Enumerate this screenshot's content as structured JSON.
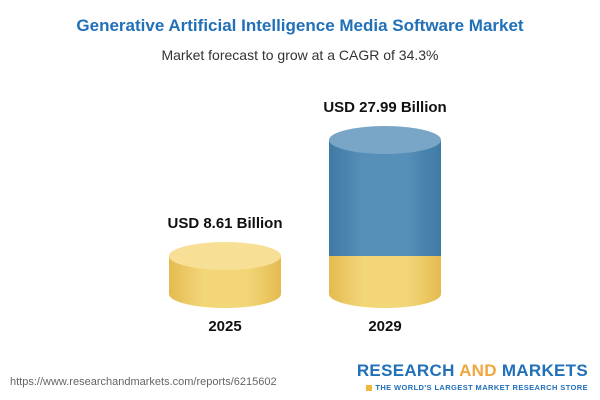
{
  "title": "Generative Artificial Intelligence Media Software Market",
  "subtitle": "Market forecast to grow at a CAGR of 34.3%",
  "chart_data": {
    "type": "bar",
    "title": "Generative Artificial Intelligence Media Software Market",
    "subtitle": "Market forecast to grow at a CAGR of 34.3%",
    "cagr_percent": 34.3,
    "categories": [
      "2025",
      "2029"
    ],
    "values": [
      8.61,
      27.99
    ],
    "value_labels": [
      "USD 8.61 Billion",
      "USD 27.99 Billion"
    ],
    "unit": "USD Billion",
    "ylim": [
      0,
      30
    ],
    "grid": false,
    "legend": "none",
    "bar_style": "3d-cylinder",
    "colors": {
      "base_2025": "#f3d678",
      "growth_2029": "#568fb8"
    },
    "note": "2029 cylinder shows the 2025 value as a yellow base segment with blue growth segment stacked above"
  },
  "footer": {
    "url": "https://www.researchandmarkets.com/reports/6215602",
    "logo": {
      "word1": "RESEARCH",
      "word2": "AND",
      "word3": "MARKETS",
      "tagline": "THE WORLD'S LARGEST MARKET RESEARCH STORE"
    }
  },
  "colors": {
    "title": "#2170b8",
    "subtitle": "#333333",
    "logo_blue": "#2170b8",
    "logo_gold": "#f0a63c"
  }
}
